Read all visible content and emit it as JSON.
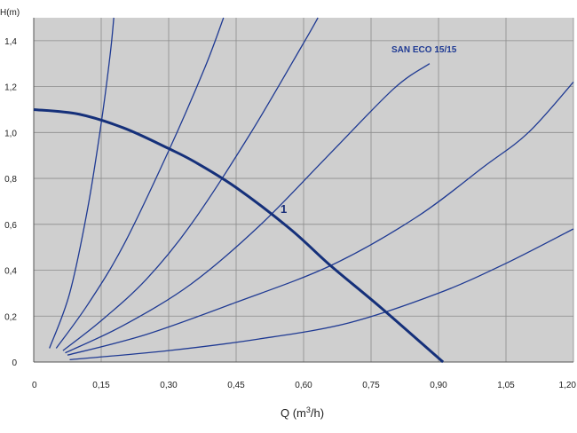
{
  "chart_data": {
    "type": "line",
    "model_label": "SAN ECO 15/15",
    "ylabel": "H(m)",
    "xlabel_prefix": "Q (m",
    "xlabel_sup": "3",
    "xlabel_suffix": "/h)",
    "xlim": [
      0,
      1.2
    ],
    "ylim": [
      0,
      1.5
    ],
    "x_ticks": [
      {
        "value": 0,
        "label": "0"
      },
      {
        "value": 0.15,
        "label": "0,15"
      },
      {
        "value": 0.3,
        "label": "0,30"
      },
      {
        "value": 0.45,
        "label": "0,45"
      },
      {
        "value": 0.6,
        "label": "0,60"
      },
      {
        "value": 0.75,
        "label": "0,75"
      },
      {
        "value": 0.9,
        "label": "0,90"
      },
      {
        "value": 1.05,
        "label": "1,05"
      },
      {
        "value": 1.2,
        "label": "1,20"
      }
    ],
    "y_ticks": [
      {
        "value": 0,
        "label": "0"
      },
      {
        "value": 0.2,
        "label": "0,2"
      },
      {
        "value": 0.4,
        "label": "0,4"
      },
      {
        "value": 0.6,
        "label": "0,6"
      },
      {
        "value": 0.8,
        "label": "0,8"
      },
      {
        "value": 1.0,
        "label": "1,0"
      },
      {
        "value": 1.2,
        "label": "1,2"
      },
      {
        "value": 1.4,
        "label": "1,4"
      }
    ],
    "grid": true,
    "colors": {
      "plot_bg": "#cfcfcf",
      "grid": "#8c8c8c",
      "system_curve": "#1f3a93",
      "pump_curve": "#15307a"
    },
    "pump_curve": {
      "name": "1",
      "points": [
        {
          "x": 0.0,
          "y": 1.1
        },
        {
          "x": 0.1,
          "y": 1.08
        },
        {
          "x": 0.2,
          "y": 1.02
        },
        {
          "x": 0.3,
          "y": 0.93
        },
        {
          "x": 0.36,
          "y": 0.87
        },
        {
          "x": 0.45,
          "y": 0.76
        },
        {
          "x": 0.57,
          "y": 0.58
        },
        {
          "x": 0.66,
          "y": 0.42
        },
        {
          "x": 0.77,
          "y": 0.24
        },
        {
          "x": 0.91,
          "y": 0.0
        }
      ]
    },
    "system_curves": [
      {
        "points": [
          {
            "x": 0.035,
            "y": 0.06
          },
          {
            "x": 0.08,
            "y": 0.3
          },
          {
            "x": 0.12,
            "y": 0.67
          },
          {
            "x": 0.15,
            "y": 1.04
          },
          {
            "x": 0.17,
            "y": 1.34
          },
          {
            "x": 0.178,
            "y": 1.5
          }
        ]
      },
      {
        "points": [
          {
            "x": 0.05,
            "y": 0.06
          },
          {
            "x": 0.12,
            "y": 0.25
          },
          {
            "x": 0.2,
            "y": 0.51
          },
          {
            "x": 0.3,
            "y": 0.92
          },
          {
            "x": 0.38,
            "y": 1.28
          },
          {
            "x": 0.422,
            "y": 1.5
          }
        ]
      },
      {
        "points": [
          {
            "x": 0.065,
            "y": 0.05
          },
          {
            "x": 0.15,
            "y": 0.18
          },
          {
            "x": 0.25,
            "y": 0.36
          },
          {
            "x": 0.35,
            "y": 0.6
          },
          {
            "x": 0.48,
            "y": 0.99
          },
          {
            "x": 0.6,
            "y": 1.39
          },
          {
            "x": 0.632,
            "y": 1.5
          }
        ]
      },
      {
        "points": [
          {
            "x": 0.07,
            "y": 0.04
          },
          {
            "x": 0.2,
            "y": 0.16
          },
          {
            "x": 0.35,
            "y": 0.34
          },
          {
            "x": 0.5,
            "y": 0.59
          },
          {
            "x": 0.65,
            "y": 0.89
          },
          {
            "x": 0.8,
            "y": 1.19
          },
          {
            "x": 0.88,
            "y": 1.3
          }
        ]
      },
      {
        "points": [
          {
            "x": 0.075,
            "y": 0.03
          },
          {
            "x": 0.25,
            "y": 0.12
          },
          {
            "x": 0.45,
            "y": 0.26
          },
          {
            "x": 0.66,
            "y": 0.42
          },
          {
            "x": 0.85,
            "y": 0.63
          },
          {
            "x": 1.0,
            "y": 0.85
          },
          {
            "x": 1.1,
            "y": 1.0
          },
          {
            "x": 1.2,
            "y": 1.22
          }
        ]
      },
      {
        "points": [
          {
            "x": 0.08,
            "y": 0.01
          },
          {
            "x": 0.3,
            "y": 0.05
          },
          {
            "x": 0.5,
            "y": 0.1
          },
          {
            "x": 0.7,
            "y": 0.17
          },
          {
            "x": 0.9,
            "y": 0.3
          },
          {
            "x": 1.05,
            "y": 0.43
          },
          {
            "x": 1.2,
            "y": 0.58
          }
        ]
      }
    ]
  }
}
